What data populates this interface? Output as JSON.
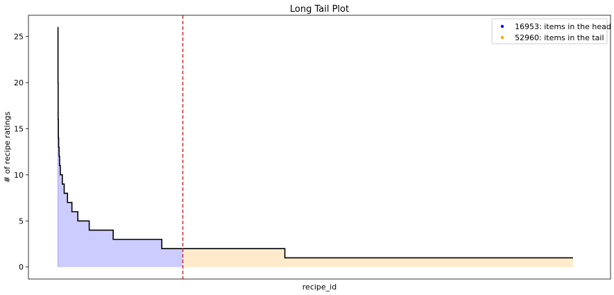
{
  "chart_data": {
    "type": "area",
    "title": "Long Tail Plot",
    "xlabel": "recipe_id",
    "ylabel": "# of recipe ratings",
    "ylim": [
      -1.3,
      27.3
    ],
    "yticks": [
      0,
      5,
      10,
      15,
      20,
      25
    ],
    "xlim": [
      -4000,
      75000
    ],
    "grid": false,
    "legend_position": "top-right",
    "cutoff_index": 16953,
    "cutoff_line_color": "#d62728",
    "series": [
      {
        "name": "16953: items in the head",
        "region": "head",
        "fill_color": "#ccccff",
        "marker_color": "#0000ff",
        "x_range": [
          0,
          16953
        ]
      },
      {
        "name": "52960: items in the tail",
        "region": "tail",
        "fill_color": "#ffebcc",
        "marker_color": "#ffa500",
        "x_range": [
          16953,
          69913
        ]
      }
    ],
    "steps": [
      {
        "x": 0,
        "y": 26
      },
      {
        "x": 10,
        "y": 20
      },
      {
        "x": 30,
        "y": 16
      },
      {
        "x": 60,
        "y": 14
      },
      {
        "x": 100,
        "y": 13
      },
      {
        "x": 160,
        "y": 12
      },
      {
        "x": 230,
        "y": 11
      },
      {
        "x": 330,
        "y": 10
      },
      {
        "x": 600,
        "y": 9
      },
      {
        "x": 850,
        "y": 8
      },
      {
        "x": 1000,
        "y": 8
      },
      {
        "x": 1300,
        "y": 7
      },
      {
        "x": 1900,
        "y": 6
      },
      {
        "x": 2700,
        "y": 5
      },
      {
        "x": 4250,
        "y": 4
      },
      {
        "x": 7500,
        "y": 3
      },
      {
        "x": 14100,
        "y": 2
      },
      {
        "x": 30800,
        "y": 1
      },
      {
        "x": 69913,
        "y": 1
      }
    ]
  }
}
